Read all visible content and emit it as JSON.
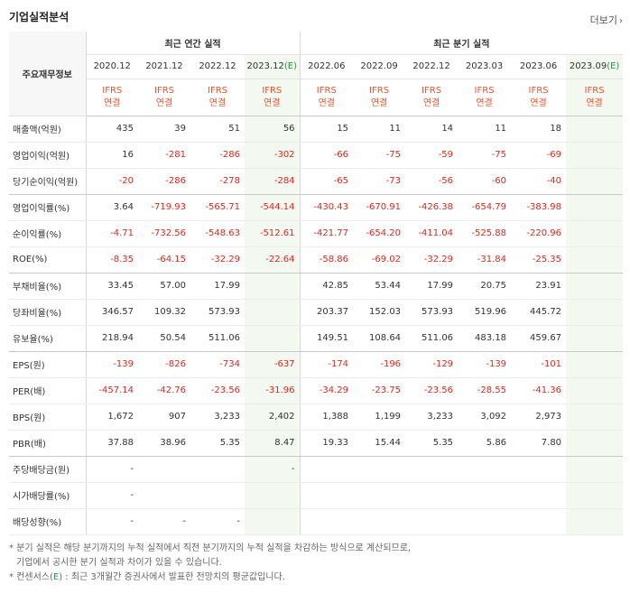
{
  "page": {
    "title": "기업실적분석",
    "more_label": "더보기",
    "more_arrow": "›"
  },
  "table": {
    "row_header": "주요재무정보",
    "group_annual": "최근 연간 실적",
    "group_quarter": "최근 분기 실적",
    "periods": [
      {
        "date": "2020.12",
        "est": ""
      },
      {
        "date": "2021.12",
        "est": ""
      },
      {
        "date": "2022.12",
        "est": ""
      },
      {
        "date": "2023.12",
        "est": "(E)"
      },
      {
        "date": "2022.06",
        "est": ""
      },
      {
        "date": "2022.09",
        "est": ""
      },
      {
        "date": "2022.12",
        "est": ""
      },
      {
        "date": "2023.03",
        "est": ""
      },
      {
        "date": "2023.06",
        "est": ""
      },
      {
        "date": "2023.09",
        "est": "(E)"
      }
    ],
    "basis_top": "IFRS",
    "basis_bottom": "연결",
    "rows": [
      {
        "label": "매출액(억원)",
        "values": [
          "435",
          "39",
          "51",
          "56",
          "15",
          "11",
          "14",
          "11",
          "18",
          ""
        ]
      },
      {
        "label": "영업이익(억원)",
        "values": [
          "16",
          "-281",
          "-286",
          "-302",
          "-66",
          "-75",
          "-59",
          "-75",
          "-69",
          ""
        ]
      },
      {
        "label": "당기순이익(억원)",
        "values": [
          "-20",
          "-286",
          "-278",
          "-284",
          "-65",
          "-73",
          "-56",
          "-60",
          "-40",
          ""
        ]
      },
      {
        "label": "영업이익률(%)",
        "values": [
          "3.64",
          "-719.93",
          "-565.71",
          "-544.14",
          "-430.43",
          "-670.91",
          "-426.38",
          "-654.79",
          "-383.98",
          ""
        ]
      },
      {
        "label": "순이익률(%)",
        "values": [
          "-4.71",
          "-732.56",
          "-548.63",
          "-512.61",
          "-421.77",
          "-654.20",
          "-411.04",
          "-525.88",
          "-220.96",
          ""
        ]
      },
      {
        "label": "ROE(%)",
        "values": [
          "-8.35",
          "-64.15",
          "-32.29",
          "-22.64",
          "-58.86",
          "-69.02",
          "-32.29",
          "-31.84",
          "-25.35",
          ""
        ]
      },
      {
        "label": "부채비율(%)",
        "values": [
          "33.45",
          "57.00",
          "17.99",
          "",
          "42.85",
          "53.44",
          "17.99",
          "20.75",
          "23.91",
          ""
        ]
      },
      {
        "label": "당좌비율(%)",
        "values": [
          "346.57",
          "109.32",
          "573.93",
          "",
          "203.37",
          "152.03",
          "573.93",
          "519.96",
          "445.72",
          ""
        ]
      },
      {
        "label": "유보율(%)",
        "values": [
          "218.94",
          "50.54",
          "511.06",
          "",
          "149.51",
          "108.64",
          "511.06",
          "483.18",
          "459.67",
          ""
        ]
      },
      {
        "label": "EPS(원)",
        "values": [
          "-139",
          "-826",
          "-734",
          "-637",
          "-174",
          "-196",
          "-129",
          "-139",
          "-101",
          ""
        ]
      },
      {
        "label": "PER(배)",
        "values": [
          "-457.14",
          "-42.76",
          "-23.56",
          "-31.96",
          "-34.29",
          "-23.75",
          "-23.56",
          "-28.55",
          "-41.36",
          ""
        ]
      },
      {
        "label": "BPS(원)",
        "values": [
          "1,672",
          "907",
          "3,233",
          "2,402",
          "1,388",
          "1,199",
          "3,233",
          "3,092",
          "2,973",
          ""
        ]
      },
      {
        "label": "PBR(배)",
        "values": [
          "37.88",
          "38.96",
          "5.35",
          "8.47",
          "19.33",
          "15.44",
          "5.35",
          "5.86",
          "7.80",
          ""
        ]
      },
      {
        "label": "주당배당금(원)",
        "values": [
          "-",
          "",
          "",
          "-",
          "",
          "",
          "",
          "",
          "",
          ""
        ]
      },
      {
        "label": "시가배당률(%)",
        "values": [
          "-",
          "",
          "",
          "",
          "",
          "",
          "",
          "",
          "",
          ""
        ]
      },
      {
        "label": "배당성향(%)",
        "values": [
          "-",
          "-",
          "-",
          "",
          "",
          "",
          "",
          "",
          "",
          ""
        ]
      }
    ]
  },
  "notes": {
    "line1": "* 분기 실적은 해당 분기까지의 누적 실적에서 직전 분기까지의 누적 실적을 차감하는 방식으로 계산되므로,",
    "line2": "기업에서 공시한 분기 실적과 차이가 있을 수 있습니다.",
    "line3_pre": "* 컨센서스(",
    "line3_e": "E",
    "line3_post": ") : 최근 3개월간 증권사에서 발표한 전망치의 평균값입니다."
  },
  "colors": {
    "negative": "#e2261e",
    "basis": "#e8552f",
    "estimate_bg": "#f3f8f1",
    "estimate_mark": "#1e9b3a"
  }
}
